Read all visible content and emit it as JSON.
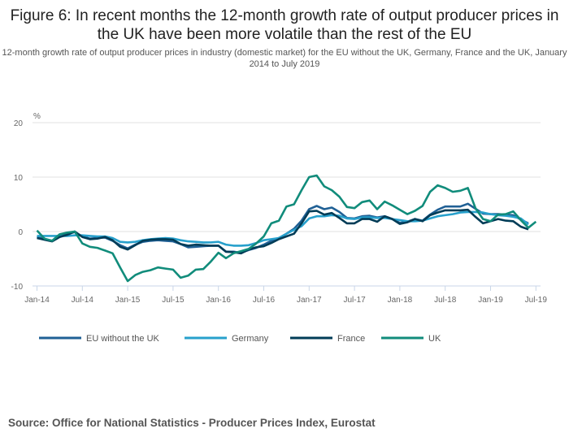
{
  "title": "Figure 6: In recent months the 12-month growth rate of output producer prices in the UK have been more volatile than the rest of the EU",
  "subtitle": "12-month growth rate of output producer prices in industry (domestic market) for the EU without the UK, Germany, France and the UK, January 2014 to July 2019",
  "source": "Source: Office for National Statistics - Producer Prices Index, Eurostat",
  "chart_data": {
    "type": "line",
    "title": "Figure 6: In recent months the 12-month growth rate of output producer prices in the UK have been more volatile than the rest of the EU",
    "ylabel": "%",
    "ylim": [
      -10,
      20
    ],
    "yticks": [
      "20",
      "10",
      "0",
      "-10"
    ],
    "xticks": [
      "Jan-14",
      "Jul-14",
      "Jan-15",
      "Jul-15",
      "Jan-16",
      "Jul-16",
      "Jan-17",
      "Jul-17",
      "Jan-18",
      "Jul-18",
      "Jan-19",
      "Jul-19"
    ],
    "x_start": "Jan-2014",
    "x_end": "Jul-2019",
    "x_frequency": "monthly",
    "grid": true,
    "legend": "bottom",
    "series": [
      {
        "name": "EU without the UK",
        "color": "#206095",
        "values": [
          -0.9,
          -1.4,
          -1.7,
          -0.9,
          -0.4,
          -0.1,
          -0.9,
          -1.3,
          -1.2,
          -1.1,
          -1.7,
          -2.5,
          -3.1,
          -2.4,
          -1.9,
          -1.7,
          -1.6,
          -1.7,
          -1.8,
          -2.3,
          -2.9,
          -2.8,
          -2.7,
          -2.6,
          -2.6,
          -3.7,
          -3.7,
          -3.9,
          -3.4,
          -3.0,
          -2.4,
          -1.7,
          -1.2,
          -0.4,
          0.5,
          2.0,
          4.1,
          4.7,
          4.1,
          4.4,
          3.6,
          2.5,
          2.4,
          2.8,
          2.9,
          2.6,
          2.8,
          2.3,
          1.6,
          1.8,
          2.3,
          2.0,
          3.1,
          4.0,
          4.6,
          4.6,
          4.6,
          5.1,
          4.2,
          3.3,
          3.2,
          3.2,
          3.1,
          3.0,
          2.2,
          1.5
        ]
      },
      {
        "name": "Germany",
        "color": "#27a0cc",
        "values": [
          -0.8,
          -0.8,
          -0.8,
          -0.8,
          -0.8,
          -0.7,
          -0.7,
          -0.8,
          -0.9,
          -0.9,
          -1.2,
          -1.9,
          -2.0,
          -1.9,
          -1.6,
          -1.4,
          -1.3,
          -1.2,
          -1.3,
          -1.6,
          -1.8,
          -1.9,
          -2.0,
          -2.0,
          -1.9,
          -2.4,
          -2.6,
          -2.6,
          -2.5,
          -2.1,
          -1.6,
          -1.4,
          -1.2,
          -0.4,
          0.3,
          1.0,
          2.4,
          2.8,
          2.8,
          3.0,
          2.9,
          2.4,
          2.3,
          2.6,
          2.6,
          2.5,
          2.5,
          2.3,
          2.1,
          1.9,
          1.9,
          2.0,
          2.4,
          2.8,
          3.0,
          3.2,
          3.5,
          3.6,
          3.6,
          3.5,
          3.2,
          3.0,
          2.9,
          2.7,
          2.4,
          1.3
        ]
      },
      {
        "name": "France",
        "color": "#003c57",
        "values": [
          -1.2,
          -1.5,
          -1.8,
          -1.0,
          -0.6,
          0.0,
          -1.0,
          -1.4,
          -1.3,
          -1.0,
          -1.6,
          -2.8,
          -3.3,
          -2.5,
          -1.7,
          -1.5,
          -1.4,
          -1.4,
          -1.5,
          -2.3,
          -2.6,
          -2.4,
          -2.5,
          -2.6,
          -2.6,
          -3.7,
          -3.8,
          -4.0,
          -3.3,
          -2.9,
          -2.7,
          -2.1,
          -1.4,
          -0.9,
          -0.4,
          1.5,
          3.7,
          3.8,
          3.1,
          3.4,
          2.5,
          1.5,
          1.5,
          2.3,
          2.3,
          1.8,
          2.8,
          2.3,
          1.4,
          1.7,
          2.3,
          1.9,
          3.0,
          3.5,
          3.9,
          3.9,
          3.9,
          4.0,
          2.7,
          1.5,
          1.9,
          2.3,
          2.0,
          1.9,
          0.9,
          0.4
        ]
      },
      {
        "name": "UK",
        "color": "#118c7b",
        "values": [
          0.2,
          -1.3,
          -1.7,
          -0.5,
          -0.2,
          0.0,
          -2.2,
          -2.8,
          -3.0,
          -3.5,
          -4.0,
          -6.6,
          -9.1,
          -8.0,
          -7.4,
          -7.1,
          -6.6,
          -6.8,
          -7.0,
          -8.5,
          -8.1,
          -7.0,
          -6.9,
          -5.5,
          -3.9,
          -4.9,
          -4.0,
          -3.6,
          -3.2,
          -2.2,
          -0.9,
          1.5,
          2.0,
          4.6,
          5.0,
          7.6,
          10.0,
          10.3,
          8.3,
          7.6,
          6.4,
          4.5,
          4.3,
          5.4,
          5.7,
          4.1,
          5.5,
          4.8,
          4.0,
          3.2,
          3.8,
          4.7,
          7.3,
          8.5,
          8.0,
          7.3,
          7.5,
          8.0,
          4.3,
          2.3,
          1.9,
          3.1,
          3.2,
          3.7,
          2.1,
          0.7,
          1.8
        ]
      }
    ]
  }
}
